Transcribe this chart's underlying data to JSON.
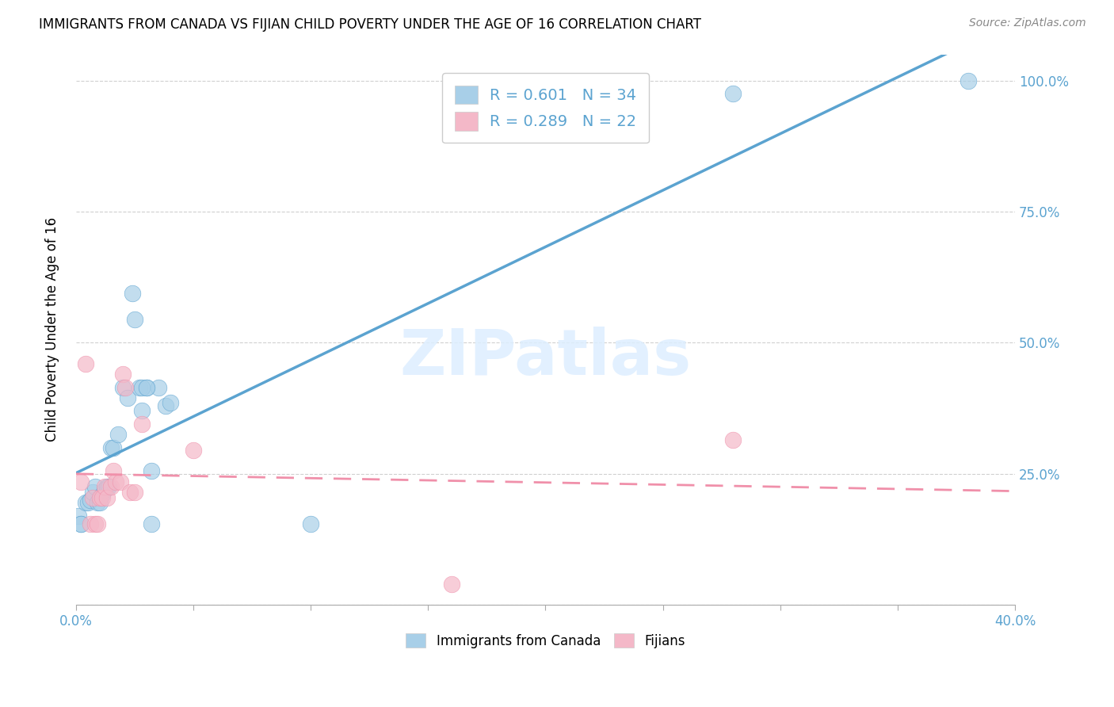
{
  "title": "IMMIGRANTS FROM CANADA VS FIJIAN CHILD POVERTY UNDER THE AGE OF 16 CORRELATION CHART",
  "source": "Source: ZipAtlas.com",
  "ylabel": "Child Poverty Under the Age of 16",
  "blue_color": "#a8cfe8",
  "pink_color": "#f4b8c8",
  "blue_line_color": "#5ba3d0",
  "pink_line_color": "#f090aa",
  "watermark_text": "ZIPatlas",
  "canada_x": [
    0.001,
    0.002,
    0.002,
    0.004,
    0.005,
    0.006,
    0.007,
    0.008,
    0.009,
    0.01,
    0.011,
    0.012,
    0.013,
    0.014,
    0.015,
    0.016,
    0.018,
    0.02,
    0.022,
    0.024,
    0.025,
    0.027,
    0.028,
    0.03,
    0.032,
    0.035,
    0.038,
    0.04,
    0.028,
    0.03,
    0.032,
    0.1,
    0.28,
    0.38
  ],
  "canada_y": [
    0.17,
    0.155,
    0.155,
    0.195,
    0.195,
    0.2,
    0.215,
    0.225,
    0.195,
    0.195,
    0.21,
    0.22,
    0.225,
    0.225,
    0.3,
    0.3,
    0.325,
    0.415,
    0.395,
    0.595,
    0.545,
    0.415,
    0.37,
    0.415,
    0.255,
    0.415,
    0.38,
    0.385,
    0.415,
    0.415,
    0.155,
    0.155,
    0.975,
    1.0
  ],
  "fijian_x": [
    0.002,
    0.004,
    0.006,
    0.007,
    0.008,
    0.009,
    0.01,
    0.011,
    0.012,
    0.013,
    0.015,
    0.016,
    0.017,
    0.019,
    0.02,
    0.021,
    0.023,
    0.025,
    0.028,
    0.05,
    0.16,
    0.28
  ],
  "fijian_y": [
    0.235,
    0.46,
    0.155,
    0.205,
    0.155,
    0.155,
    0.205,
    0.205,
    0.225,
    0.205,
    0.225,
    0.255,
    0.235,
    0.235,
    0.44,
    0.415,
    0.215,
    0.215,
    0.345,
    0.295,
    0.04,
    0.315
  ],
  "xlim": [
    0,
    0.4
  ],
  "ylim": [
    0,
    1.05
  ],
  "ytick_vals": [
    0.0,
    0.25,
    0.5,
    0.75,
    1.0
  ],
  "ytick_labels": [
    "",
    "25.0%",
    "50.0%",
    "75.0%",
    "100.0%"
  ],
  "xtick_labels_left": "0.0%",
  "xtick_labels_right": "40.0%",
  "legend1_label1": "R = 0.601   N = 34",
  "legend1_label2": "R = 0.289   N = 22",
  "legend2_label1": "Immigrants from Canada",
  "legend2_label2": "Fijians"
}
